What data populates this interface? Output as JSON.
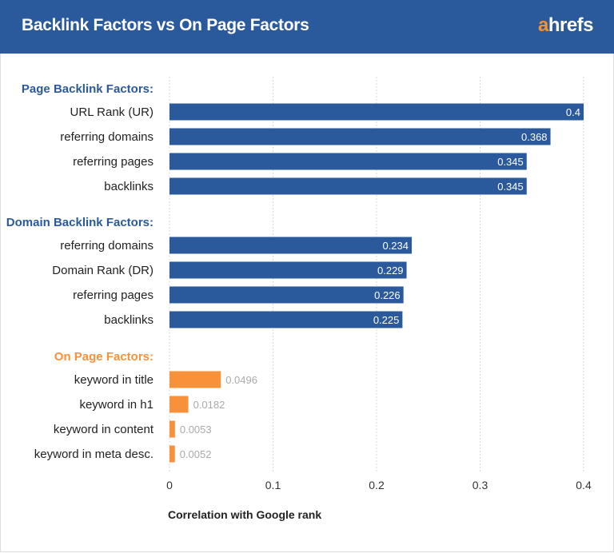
{
  "header": {
    "title": "Backlink Factors vs On Page Factors",
    "logo_accent": "a",
    "logo_rest": "hrefs",
    "logo_text": "ahrefs"
  },
  "chart_data": {
    "type": "bar",
    "orientation": "horizontal",
    "xlabel": "Correlation with Google rank",
    "xlim": [
      0,
      0.4
    ],
    "xticks": [
      "0",
      "0.1",
      "0.2",
      "0.3",
      "0.4"
    ],
    "grid": true,
    "groups": [
      {
        "name": "Page Backlink Factors:",
        "color": "#2a5a9c",
        "categories": [
          "URL Rank (UR)",
          "referring domains",
          "referring pages",
          "backlinks"
        ],
        "values": [
          0.4,
          0.368,
          0.345,
          0.345
        ],
        "labels": [
          "0.4",
          "0.368",
          "0.345",
          "0.345"
        ]
      },
      {
        "name": "Domain Backlink Factors:",
        "color": "#2a5a9c",
        "categories": [
          "referring domains",
          "Domain Rank (DR)",
          "referring pages",
          "backlinks"
        ],
        "values": [
          0.234,
          0.229,
          0.226,
          0.225
        ],
        "labels": [
          "0.234",
          "0.229",
          "0.226",
          "0.225"
        ]
      },
      {
        "name": "On Page Factors:",
        "color": "#f7913a",
        "categories": [
          "keyword in title",
          "keyword in h1",
          "keyword in content",
          "keyword in meta desc."
        ],
        "values": [
          0.0496,
          0.0182,
          0.0053,
          0.0052
        ],
        "labels": [
          "0.0496",
          "0.0182",
          "0.0053",
          "0.0052"
        ]
      }
    ]
  }
}
